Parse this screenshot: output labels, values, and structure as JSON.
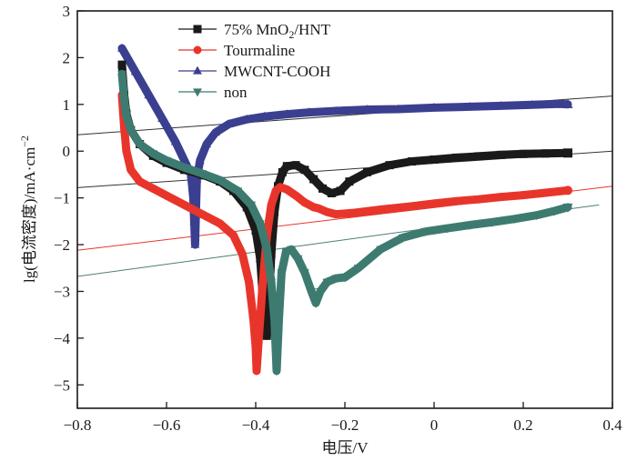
{
  "chart_data": {
    "type": "line",
    "title": "",
    "xlabel": "电压/V",
    "ylabel": "lg(电流密度)/mA·cm⁻²",
    "ylabel_parts": {
      "main": "lg(电流密度)/mA·cm",
      "sup": "−2"
    },
    "xlim": [
      -0.8,
      0.4
    ],
    "ylim": [
      -5.5,
      3
    ],
    "xticks": [
      -0.8,
      -0.6,
      -0.4,
      -0.2,
      0,
      0.2,
      0.4
    ],
    "xtick_labels": [
      "−0.8",
      "−0.6",
      "−0.4",
      "−0.2",
      "0",
      "0.2",
      "0.4"
    ],
    "yticks": [
      3,
      2,
      1,
      0,
      -1,
      -2,
      -3,
      -4,
      -5
    ],
    "ytick_labels": [
      "3",
      "2",
      "1",
      "0",
      "−1",
      "−2",
      "−3",
      "−4",
      "−5"
    ],
    "grid": false,
    "legend_position": "top-center",
    "series": [
      {
        "name": "75% MnO2/HNT",
        "legend_parts": {
          "pre": "75%  MnO",
          "sub": "2",
          "post": "/HNT"
        },
        "color": "#1a1a1a",
        "marker": "square",
        "points": [
          [
            -0.7,
            1.85
          ],
          [
            -0.695,
            1.2
          ],
          [
            -0.69,
            0.8
          ],
          [
            -0.68,
            0.45
          ],
          [
            -0.66,
            0.15
          ],
          [
            -0.63,
            -0.1
          ],
          [
            -0.6,
            -0.25
          ],
          [
            -0.56,
            -0.4
          ],
          [
            -0.52,
            -0.5
          ],
          [
            -0.48,
            -0.65
          ],
          [
            -0.45,
            -0.85
          ],
          [
            -0.42,
            -1.2
          ],
          [
            -0.4,
            -1.7
          ],
          [
            -0.39,
            -2.3
          ],
          [
            -0.385,
            -3.0
          ],
          [
            -0.378,
            -3.7
          ],
          [
            -0.375,
            -3.95
          ],
          [
            -0.37,
            -3.2
          ],
          [
            -0.365,
            -2.2
          ],
          [
            -0.358,
            -1.3
          ],
          [
            -0.35,
            -0.75
          ],
          [
            -0.34,
            -0.45
          ],
          [
            -0.33,
            -0.32
          ],
          [
            -0.31,
            -0.3
          ],
          [
            -0.29,
            -0.4
          ],
          [
            -0.27,
            -0.6
          ],
          [
            -0.25,
            -0.8
          ],
          [
            -0.23,
            -0.9
          ],
          [
            -0.21,
            -0.85
          ],
          [
            -0.19,
            -0.65
          ],
          [
            -0.15,
            -0.45
          ],
          [
            -0.1,
            -0.3
          ],
          [
            -0.05,
            -0.22
          ],
          [
            0.0,
            -0.18
          ],
          [
            0.05,
            -0.14
          ],
          [
            0.1,
            -0.11
          ],
          [
            0.15,
            -0.08
          ],
          [
            0.2,
            -0.06
          ],
          [
            0.25,
            -0.05
          ],
          [
            0.3,
            -0.04
          ]
        ]
      },
      {
        "name": "Tourmaline",
        "color": "#e8352b",
        "marker": "circle",
        "points": [
          [
            -0.7,
            1.2
          ],
          [
            -0.695,
            0.5
          ],
          [
            -0.69,
            0.0
          ],
          [
            -0.68,
            -0.4
          ],
          [
            -0.66,
            -0.65
          ],
          [
            -0.63,
            -0.8
          ],
          [
            -0.6,
            -0.95
          ],
          [
            -0.56,
            -1.15
          ],
          [
            -0.52,
            -1.35
          ],
          [
            -0.48,
            -1.55
          ],
          [
            -0.45,
            -1.8
          ],
          [
            -0.43,
            -2.2
          ],
          [
            -0.415,
            -2.8
          ],
          [
            -0.405,
            -3.6
          ],
          [
            -0.4,
            -4.2
          ],
          [
            -0.398,
            -4.7
          ],
          [
            -0.393,
            -4.0
          ],
          [
            -0.385,
            -2.9
          ],
          [
            -0.375,
            -1.8
          ],
          [
            -0.365,
            -1.15
          ],
          [
            -0.355,
            -0.85
          ],
          [
            -0.345,
            -0.77
          ],
          [
            -0.33,
            -0.82
          ],
          [
            -0.31,
            -0.95
          ],
          [
            -0.29,
            -1.1
          ],
          [
            -0.27,
            -1.2
          ],
          [
            -0.26,
            -1.22
          ],
          [
            -0.24,
            -1.3
          ],
          [
            -0.22,
            -1.35
          ],
          [
            -0.18,
            -1.32
          ],
          [
            -0.12,
            -1.25
          ],
          [
            -0.05,
            -1.18
          ],
          [
            0.0,
            -1.12
          ],
          [
            0.05,
            -1.07
          ],
          [
            0.1,
            -1.03
          ],
          [
            0.15,
            -0.98
          ],
          [
            0.2,
            -0.94
          ],
          [
            0.25,
            -0.89
          ],
          [
            0.3,
            -0.84
          ]
        ]
      },
      {
        "name": "MWCNT-COOH",
        "color": "#3b3f8f",
        "marker": "triangle-up",
        "points": [
          [
            -0.7,
            2.2
          ],
          [
            -0.67,
            1.7
          ],
          [
            -0.64,
            1.2
          ],
          [
            -0.61,
            0.7
          ],
          [
            -0.58,
            0.2
          ],
          [
            -0.56,
            -0.2
          ],
          [
            -0.545,
            -0.5
          ],
          [
            -0.54,
            -1.0
          ],
          [
            -0.538,
            -1.5
          ],
          [
            -0.536,
            -2.0
          ],
          [
            -0.534,
            -1.3
          ],
          [
            -0.532,
            -0.6
          ],
          [
            -0.525,
            -0.2
          ],
          [
            -0.51,
            0.15
          ],
          [
            -0.49,
            0.4
          ],
          [
            -0.46,
            0.58
          ],
          [
            -0.42,
            0.68
          ],
          [
            -0.38,
            0.74
          ],
          [
            -0.33,
            0.79
          ],
          [
            -0.28,
            0.83
          ],
          [
            -0.22,
            0.86
          ],
          [
            -0.15,
            0.89
          ],
          [
            -0.08,
            0.9
          ],
          [
            0.0,
            0.93
          ],
          [
            0.08,
            0.95
          ],
          [
            0.15,
            0.97
          ],
          [
            0.22,
            0.99
          ],
          [
            0.28,
            1.01
          ],
          [
            0.3,
            1.0
          ]
        ]
      },
      {
        "name": "non",
        "color": "#3d7b71",
        "marker": "triangle-down",
        "points": [
          [
            -0.7,
            1.65
          ],
          [
            -0.695,
            1.1
          ],
          [
            -0.69,
            0.75
          ],
          [
            -0.68,
            0.45
          ],
          [
            -0.66,
            0.15
          ],
          [
            -0.63,
            -0.05
          ],
          [
            -0.6,
            -0.2
          ],
          [
            -0.56,
            -0.35
          ],
          [
            -0.52,
            -0.48
          ],
          [
            -0.48,
            -0.62
          ],
          [
            -0.44,
            -0.85
          ],
          [
            -0.41,
            -1.15
          ],
          [
            -0.39,
            -1.55
          ],
          [
            -0.375,
            -2.1
          ],
          [
            -0.365,
            -2.8
          ],
          [
            -0.358,
            -3.6
          ],
          [
            -0.353,
            -4.7
          ],
          [
            -0.348,
            -3.6
          ],
          [
            -0.342,
            -2.6
          ],
          [
            -0.332,
            -2.15
          ],
          [
            -0.32,
            -2.1
          ],
          [
            -0.305,
            -2.3
          ],
          [
            -0.29,
            -2.6
          ],
          [
            -0.275,
            -3.0
          ],
          [
            -0.265,
            -3.25
          ],
          [
            -0.255,
            -3.0
          ],
          [
            -0.24,
            -2.8
          ],
          [
            -0.22,
            -2.72
          ],
          [
            -0.2,
            -2.7
          ],
          [
            -0.17,
            -2.5
          ],
          [
            -0.12,
            -2.1
          ],
          [
            -0.07,
            -1.85
          ],
          [
            -0.02,
            -1.72
          ],
          [
            0.03,
            -1.65
          ],
          [
            0.08,
            -1.58
          ],
          [
            0.13,
            -1.52
          ],
          [
            0.18,
            -1.45
          ],
          [
            0.23,
            -1.37
          ],
          [
            0.27,
            -1.28
          ],
          [
            0.3,
            -1.2
          ]
        ]
      }
    ],
    "tafel_lines": [
      {
        "name": "tafel-fit-mwcnt",
        "color": "#333333",
        "from": [
          -0.8,
          0.35
        ],
        "to": [
          0.4,
          1.18
        ]
      },
      {
        "name": "tafel-fit-mno2",
        "color": "#333333",
        "from": [
          -0.8,
          -0.78
        ],
        "to": [
          0.4,
          0.0
        ]
      },
      {
        "name": "tafel-fit-tourmaline",
        "color": "#e8352b",
        "from": [
          -0.8,
          -2.12
        ],
        "to": [
          0.4,
          -0.75
        ]
      },
      {
        "name": "tafel-fit-non",
        "color": "#4d7d75",
        "from": [
          -0.8,
          -2.68
        ],
        "to": [
          0.37,
          -1.15
        ]
      }
    ]
  }
}
